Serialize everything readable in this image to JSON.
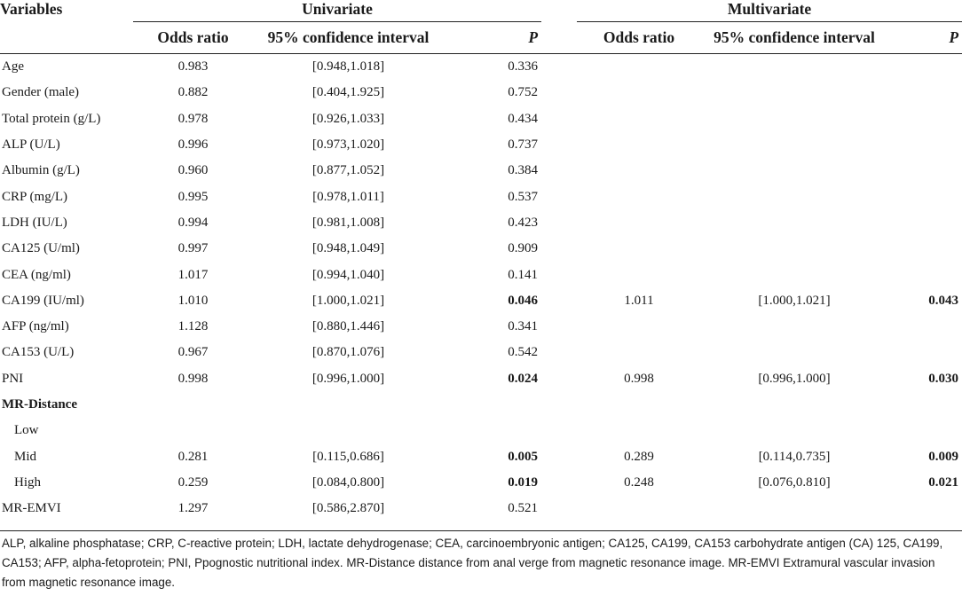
{
  "header": {
    "variables": "Variables",
    "univariate": "Univariate",
    "multivariate": "Multivariate",
    "odds_ratio": "Odds ratio",
    "ci": "95% confidence interval",
    "p": "P"
  },
  "rows": [
    {
      "var": "Age",
      "u_or": "0.983",
      "u_ci": "[0.948,1.018]",
      "u_p": "0.336",
      "m_or": "",
      "m_ci": "",
      "m_p": ""
    },
    {
      "var": "Gender (male)",
      "u_or": "0.882",
      "u_ci": "[0.404,1.925]",
      "u_p": "0.752",
      "m_or": "",
      "m_ci": "",
      "m_p": ""
    },
    {
      "var": "Total protein (g/L)",
      "u_or": "0.978",
      "u_ci": "[0.926,1.033]",
      "u_p": "0.434",
      "m_or": "",
      "m_ci": "",
      "m_p": ""
    },
    {
      "var": "ALP (U/L)",
      "u_or": "0.996",
      "u_ci": "[0.973,1.020]",
      "u_p": "0.737",
      "m_or": "",
      "m_ci": "",
      "m_p": ""
    },
    {
      "var": "Albumin (g/L)",
      "u_or": "0.960",
      "u_ci": "[0.877,1.052]",
      "u_p": "0.384",
      "m_or": "",
      "m_ci": "",
      "m_p": ""
    },
    {
      "var": "CRP (mg/L)",
      "u_or": "0.995",
      "u_ci": "[0.978,1.011]",
      "u_p": "0.537",
      "m_or": "",
      "m_ci": "",
      "m_p": ""
    },
    {
      "var": "LDH (IU/L)",
      "u_or": "0.994",
      "u_ci": "[0.981,1.008]",
      "u_p": "0.423",
      "m_or": "",
      "m_ci": "",
      "m_p": ""
    },
    {
      "var": "CA125 (U/ml)",
      "u_or": "0.997",
      "u_ci": "[0.948,1.049]",
      "u_p": "0.909",
      "m_or": "",
      "m_ci": "",
      "m_p": ""
    },
    {
      "var": "CEA (ng/ml)",
      "u_or": "1.017",
      "u_ci": "[0.994,1.040]",
      "u_p": "0.141",
      "m_or": "",
      "m_ci": "",
      "m_p": ""
    },
    {
      "var": "CA199 (IU/ml)",
      "u_or": "1.010",
      "u_ci": "[1.000,1.021]",
      "u_p": "0.046",
      "u_p_bold": true,
      "m_or": "1.011",
      "m_ci": "[1.000,1.021]",
      "m_p": "0.043",
      "m_p_bold": true
    },
    {
      "var": "AFP (ng/ml)",
      "u_or": "1.128",
      "u_ci": "[0.880,1.446]",
      "u_p": "0.341",
      "m_or": "",
      "m_ci": "",
      "m_p": ""
    },
    {
      "var": "CA153 (U/L)",
      "u_or": "0.967",
      "u_ci": "[0.870,1.076]",
      "u_p": "0.542",
      "m_or": "",
      "m_ci": "",
      "m_p": ""
    },
    {
      "var": "PNI",
      "u_or": "0.998",
      "u_ci": "[0.996,1.000]",
      "u_p": "0.024",
      "u_p_bold": true,
      "m_or": "0.998",
      "m_ci": "[0.996,1.000]",
      "m_p": "0.030",
      "m_p_bold": true
    },
    {
      "var": "MR-Distance",
      "var_bold": true,
      "u_or": "",
      "u_ci": "",
      "u_p": "",
      "m_or": "",
      "m_ci": "",
      "m_p": ""
    },
    {
      "var": "Low",
      "indent": true,
      "u_or": "",
      "u_ci": "",
      "u_p": "",
      "m_or": "",
      "m_ci": "",
      "m_p": ""
    },
    {
      "var": "Mid",
      "indent": true,
      "u_or": "0.281",
      "u_ci": "[0.115,0.686]",
      "u_p": "0.005",
      "u_p_bold": true,
      "m_or": "0.289",
      "m_ci": "[0.114,0.735]",
      "m_p": "0.009",
      "m_p_bold": true
    },
    {
      "var": "High",
      "indent": true,
      "u_or": "0.259",
      "u_ci": "[0.084,0.800]",
      "u_p": "0.019",
      "u_p_bold": true,
      "m_or": "0.248",
      "m_ci": "[0.076,0.810]",
      "m_p": "0.021",
      "m_p_bold": true
    },
    {
      "var": "MR-EMVI",
      "u_or": "1.297",
      "u_ci": "[0.586,2.870]",
      "u_p": "0.521",
      "m_or": "",
      "m_ci": "",
      "m_p": ""
    }
  ],
  "footnote": "ALP, alkaline phosphatase; CRP, C-reactive protein; LDH, lactate dehydrogenase; CEA, carcinoembryonic antigen; CA125, CA199, CA153 carbohydrate antigen (CA) 125, CA199, CA153; AFP, alpha-fetoprotein; PNI, Ppognostic nutritional index. MR-Distance distance from anal verge from magnetic resonance image. MR-EMVI Extramural vascular invasion from magnetic resonance image."
}
